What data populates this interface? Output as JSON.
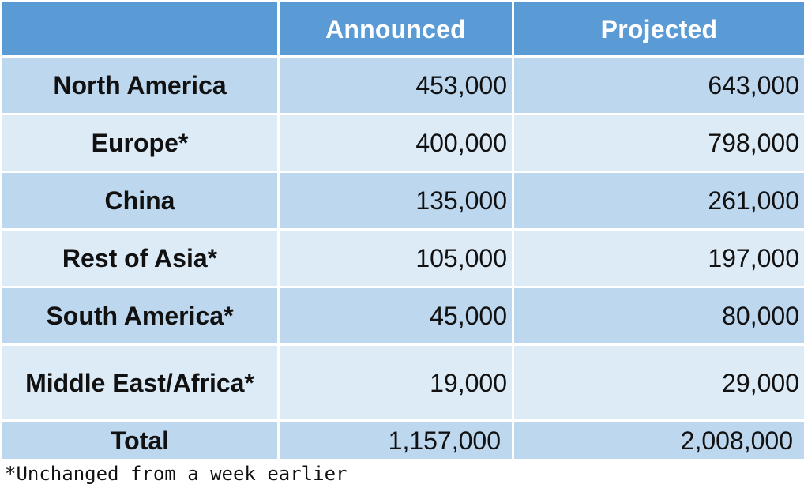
{
  "chart_data": {
    "type": "table",
    "columns": [
      "",
      "Announced",
      "Projected"
    ],
    "rows": [
      {
        "region": "North America",
        "announced": "453,000",
        "projected": "643,000"
      },
      {
        "region": "Europe*",
        "announced": "400,000",
        "projected": "798,000"
      },
      {
        "region": "China",
        "announced": "135,000",
        "projected": "261,000"
      },
      {
        "region": "Rest of Asia*",
        "announced": "105,000",
        "projected": "197,000"
      },
      {
        "region": "South America*",
        "announced": "45,000",
        "projected": "80,000"
      },
      {
        "region": "Middle East/Africa*",
        "announced": "19,000",
        "projected": "29,000"
      }
    ],
    "total": {
      "label": "Total",
      "announced": "1,157,000",
      "projected": "2,008,000"
    },
    "footnote": "*Unchanged from a week earlier"
  },
  "colors": {
    "header": "#5b9bd5",
    "band_dark": "#bdd7ee",
    "band_light": "#ddebf7"
  }
}
